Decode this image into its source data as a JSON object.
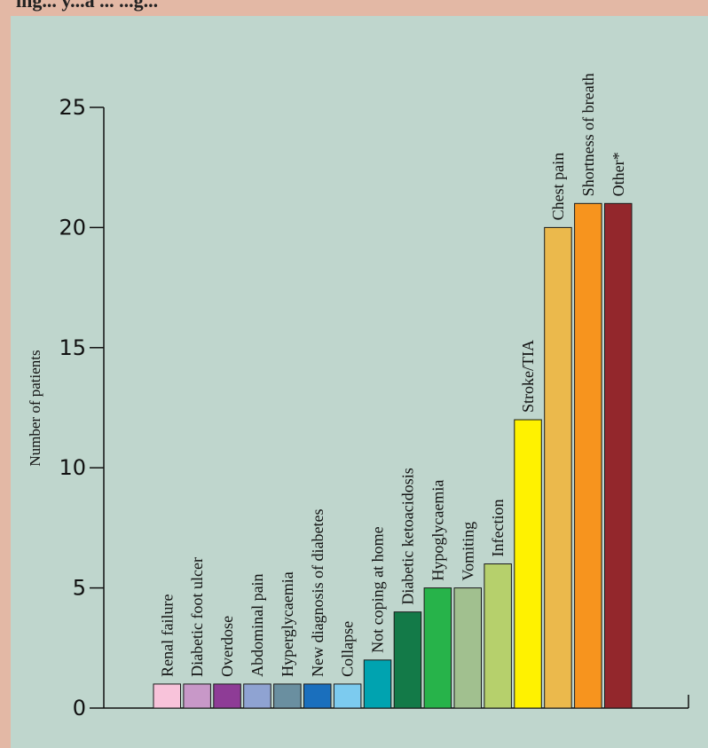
{
  "header": {
    "text": "ing... y...a ... ...g..."
  },
  "chart_data": {
    "type": "bar",
    "title": "",
    "xlabel": "",
    "ylabel": "Number of patients",
    "ylim": [
      0,
      25
    ],
    "yticks": [
      0,
      5,
      10,
      15,
      20,
      25
    ],
    "grid": false,
    "categories": [
      "Renal failure",
      "Diabetic foot ulcer",
      "Overdose",
      "Abdominal pain",
      "Hyperglycaemia",
      "New diagnosis of diabetes",
      "Collapse",
      "Not coping at home",
      "Diabetic ketoacidosis",
      "Hypoglycaemia",
      "Vomiting",
      "Infection",
      "Stroke/TIA",
      "Chest pain",
      "Shortness of breath",
      "Other*"
    ],
    "values": [
      1,
      1,
      1,
      1,
      1,
      1,
      1,
      2,
      4,
      5,
      5,
      6,
      12,
      20,
      21,
      21
    ],
    "colors": [
      "#f8c3da",
      "#c898c8",
      "#8e3c96",
      "#8fa3d2",
      "#6a8fa0",
      "#1a6fbd",
      "#7ccbef",
      "#00a3b0",
      "#137a48",
      "#27b34a",
      "#a1c08f",
      "#b6d06c",
      "#fff200",
      "#ebb94c",
      "#f7941e",
      "#93272c"
    ]
  }
}
